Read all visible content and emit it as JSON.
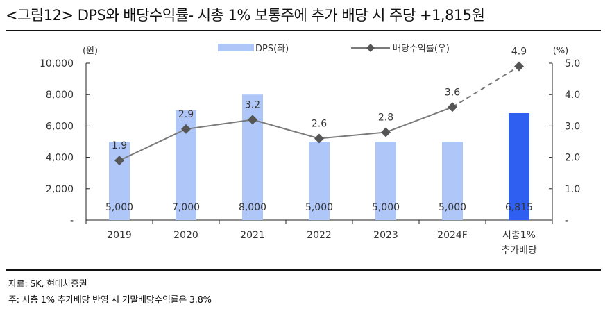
{
  "title": "<그림12> DPS와 배당수익률- 시총 1% 보통주에 추가 배당 시 주당 +1,815원",
  "source": "자료: SK, 현대차증권",
  "footnote": "주: 시총 1% 추가배당 반영 시 기말배당수익률은 3.8%",
  "colors": {
    "bar": "#aec6f8",
    "bar_highlight": "#2e5ff0",
    "line": "#7a7a7a",
    "marker": "#555555",
    "axis": "#222222",
    "text": "#333333"
  },
  "chart_data": {
    "type": "bar",
    "categories": [
      "2019",
      "2020",
      "2021",
      "2022",
      "2023",
      "2024F",
      "시총1%\n추가배당"
    ],
    "left_unit": "(원)",
    "right_unit": "(%)",
    "left_ylim": [
      0,
      10000
    ],
    "left_ticks": [
      "-",
      "2,000",
      "4,000",
      "6,000",
      "8,000",
      "10,000"
    ],
    "right_ylim": [
      0,
      5
    ],
    "right_ticks": [
      "-",
      "1.0",
      "2.0",
      "3.0",
      "4.0",
      "5.0"
    ],
    "legend_placement": "top-center",
    "series": [
      {
        "name": "DPS(좌)",
        "kind": "bar",
        "axis": "left",
        "values": [
          5000,
          7000,
          8000,
          5000,
          5000,
          5000,
          6815
        ],
        "labels": [
          "5,000",
          "7,000",
          "8,000",
          "5,000",
          "5,000",
          "5,000",
          "6,815"
        ],
        "highlight_index": 6
      },
      {
        "name": "배당수익률(우)",
        "kind": "line",
        "axis": "right",
        "values": [
          1.9,
          2.9,
          3.2,
          2.6,
          2.8,
          3.6,
          4.9
        ],
        "labels": [
          "1.9",
          "2.9",
          "3.2",
          "2.6",
          "2.8",
          "3.6",
          "4.9"
        ],
        "dashed_from_index": 5
      }
    ]
  }
}
